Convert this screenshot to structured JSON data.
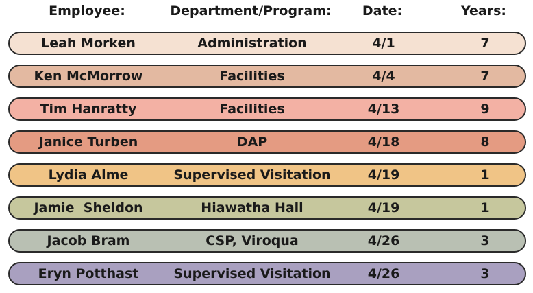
{
  "headers": {
    "employee": "Employee:",
    "department": "Department/Program:",
    "date": "Date:",
    "years": "Years:"
  },
  "rows": [
    {
      "employee": "Leah Morken",
      "department": "Administration",
      "date": "4/1",
      "years": "7",
      "color": "#f5e1d2"
    },
    {
      "employee": "Ken McMorrow",
      "department": "Facilities",
      "date": "4/4",
      "years": "7",
      "color": "#e3b9a1"
    },
    {
      "employee": "Tim Hanratty",
      "department": "Facilities",
      "date": "4/13",
      "years": "9",
      "color": "#f3b1a4"
    },
    {
      "employee": "Janice Turben",
      "department": "DAP",
      "date": "4/18",
      "years": "8",
      "color": "#e49b82"
    },
    {
      "employee": "Lydia Alme",
      "department": "Supervised Visitation",
      "date": "4/19",
      "years": "1",
      "color": "#f0c486"
    },
    {
      "employee": "Jamie  Sheldon",
      "department": "Hiawatha Hall",
      "date": "4/19",
      "years": "1",
      "color": "#c6c79d"
    },
    {
      "employee": "Jacob Bram",
      "department": "CSP, Viroqua",
      "date": "4/26",
      "years": "3",
      "color": "#b9c0b3"
    },
    {
      "employee": "Eryn Potthast",
      "department": "Supervised Visitation",
      "date": "4/26",
      "years": "3",
      "color": "#a9a0c0"
    }
  ]
}
